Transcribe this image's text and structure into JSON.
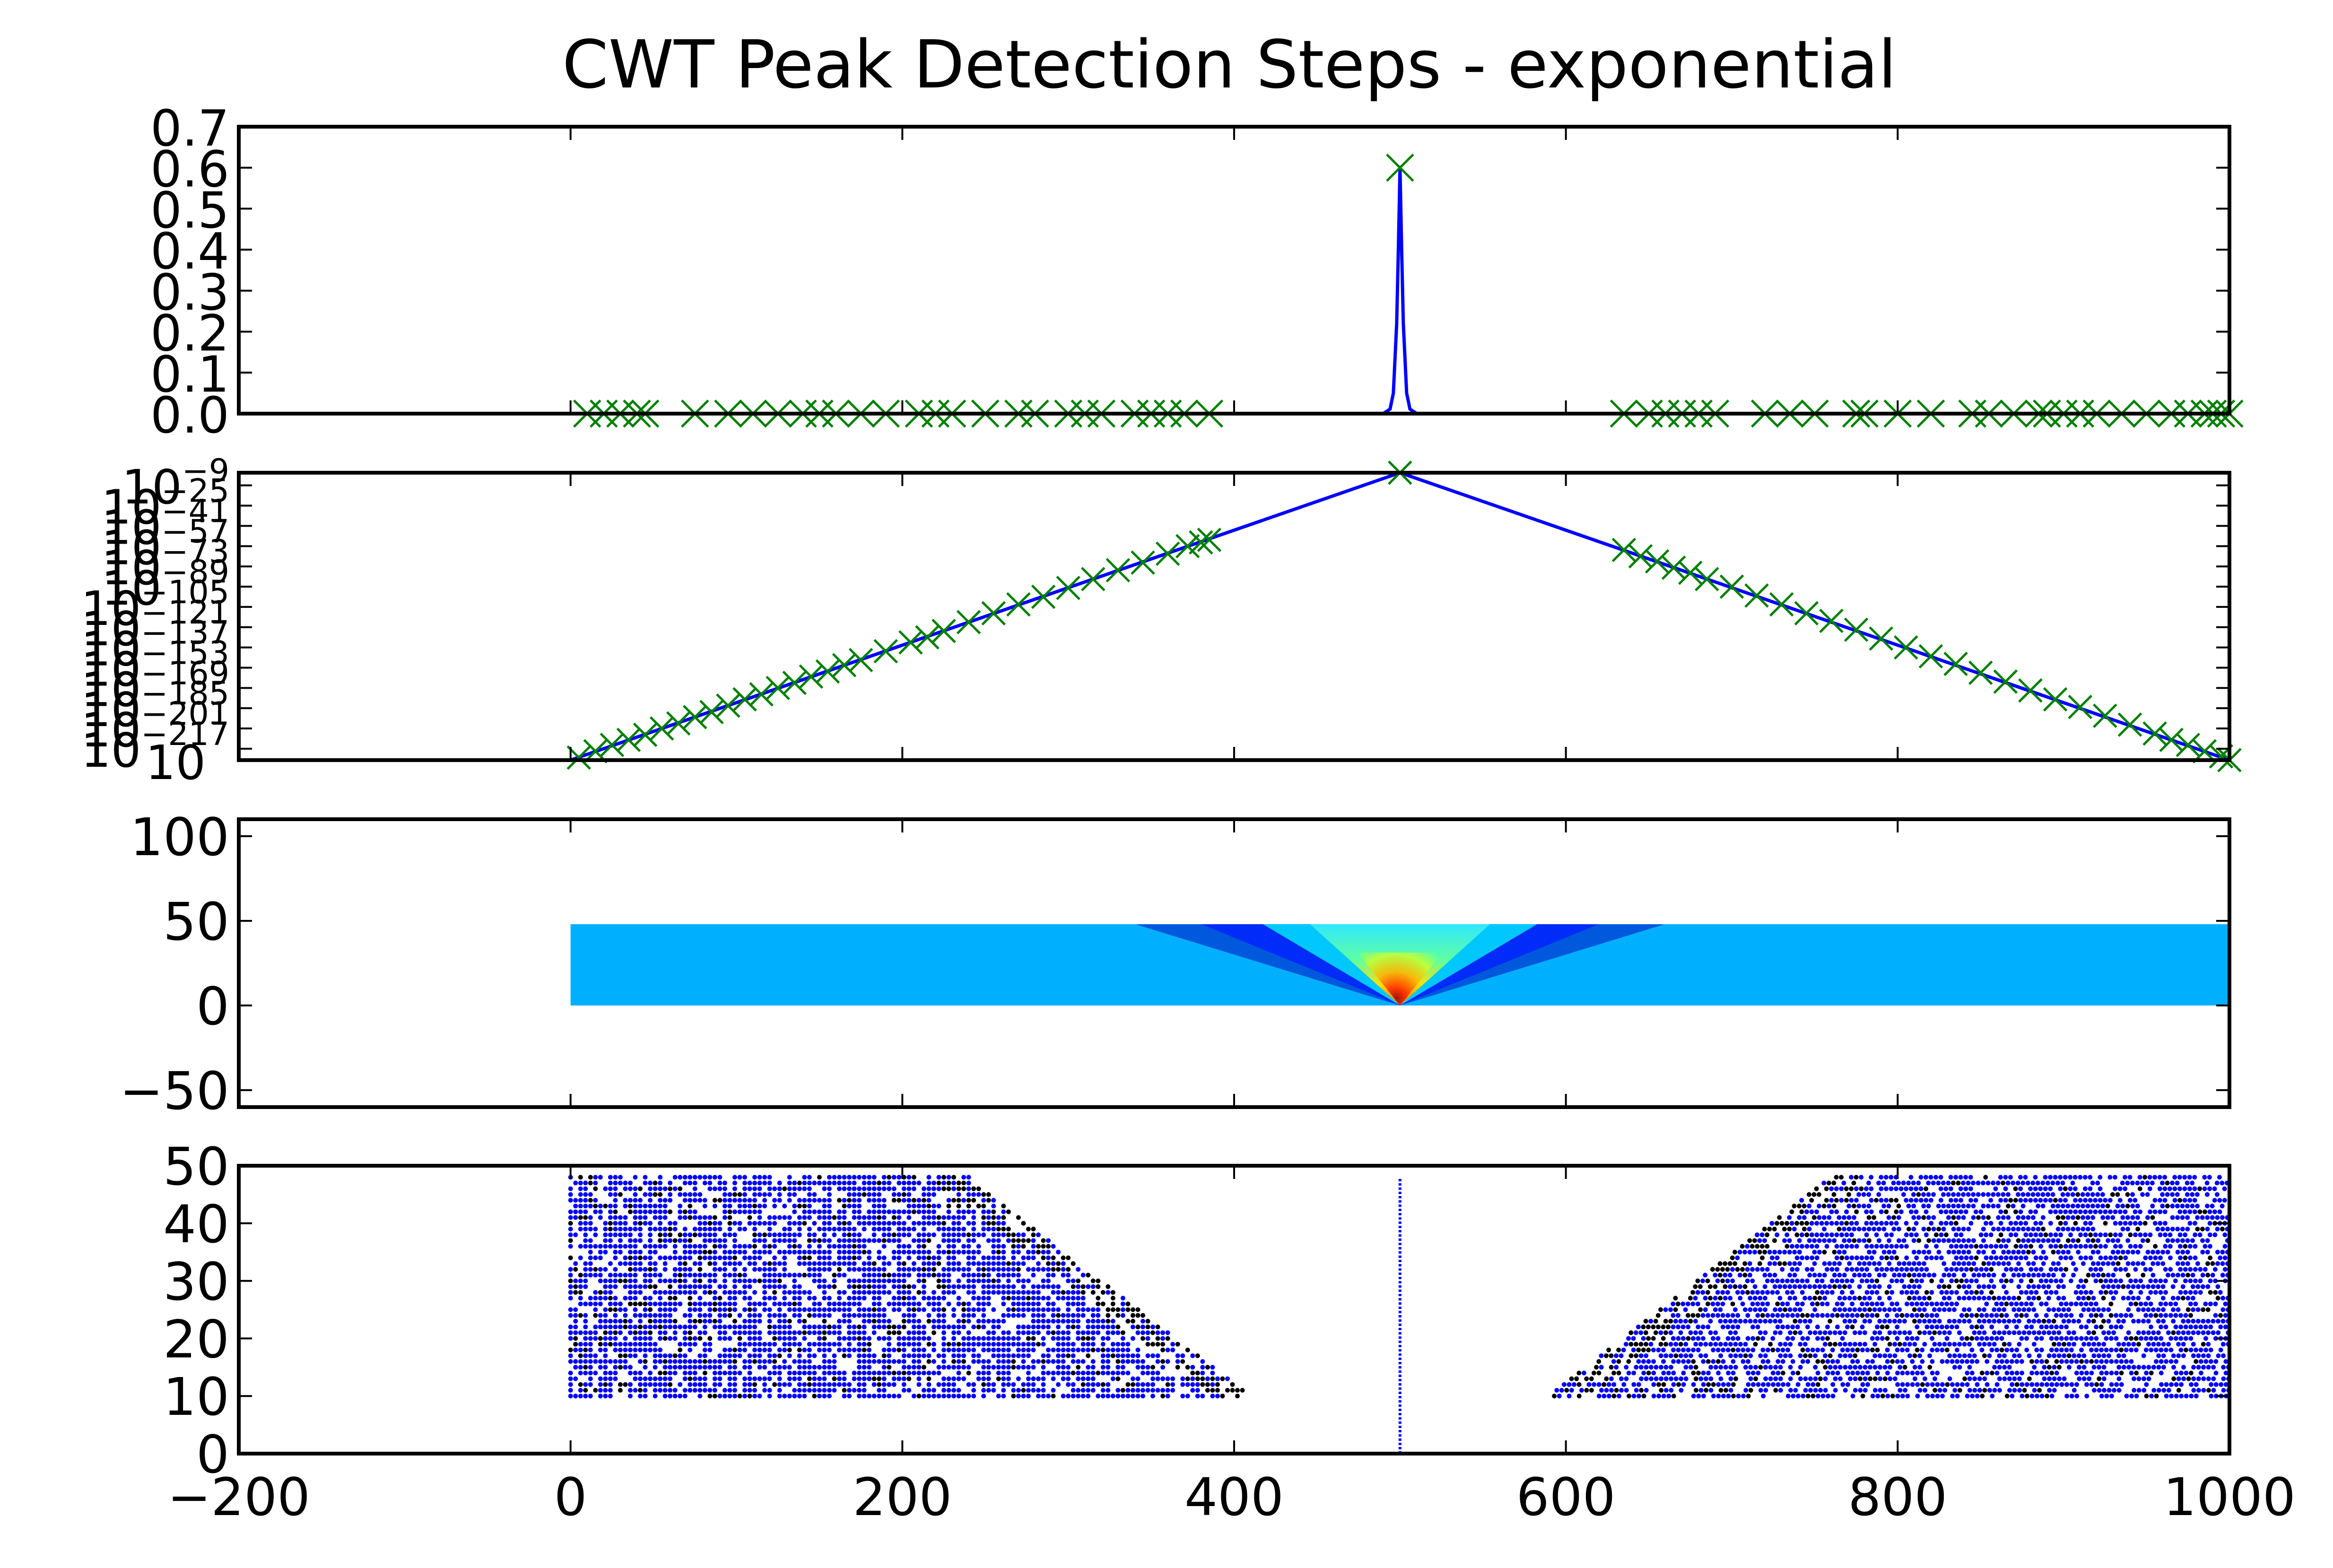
{
  "figure": {
    "title": "CWT Peak Detection Steps - exponential"
  },
  "colors": {
    "line": "#0000ff",
    "peak_marker": "#008000",
    "ridge_main": "#0000ff",
    "ridge_other": "#000000",
    "heat_background": "#00b0ff"
  },
  "chart_data": [
    {
      "id": "signal",
      "type": "line",
      "xlim": [
        -200,
        1000
      ],
      "ylim": [
        0,
        0.7
      ],
      "xticks": [
        -200,
        0,
        200,
        400,
        600,
        800,
        1000
      ],
      "yticks": [
        0.0,
        0.1,
        0.2,
        0.3,
        0.4,
        0.5,
        0.6,
        0.7
      ],
      "ytick_labels": [
        "0.0",
        "0.1",
        "0.2",
        "0.3",
        "0.4",
        "0.5",
        "0.6",
        "0.7"
      ],
      "series": [
        {
          "type": "line",
          "x": [
            0,
            480,
            490,
            494,
            496,
            498,
            499,
            500,
            501,
            502,
            504,
            506,
            510,
            520,
            1000
          ],
          "y": [
            0,
            0,
            0.0004,
            0.011,
            0.05,
            0.22,
            0.4,
            0.6,
            0.4,
            0.22,
            0.05,
            0.011,
            0.0004,
            0,
            0
          ]
        },
        {
          "type": "scatter",
          "marker": "x",
          "x": [
            500,
            10,
            20,
            30,
            40,
            45,
            75,
            95,
            110,
            125,
            140,
            150,
            160,
            175,
            190,
            210,
            220,
            230,
            250,
            270,
            280,
            300,
            310,
            320,
            340,
            350,
            360,
            370,
            385,
            635,
            650,
            660,
            670,
            680,
            690,
            720,
            735,
            750,
            775,
            780,
            800,
            820,
            845,
            855,
            870,
            885,
            890,
            900,
            910,
            920,
            935,
            950,
            965,
            975,
            985,
            990,
            995,
            1000
          ],
          "y": [
            0.6,
            0,
            0,
            0,
            0,
            0,
            0,
            0,
            0,
            0,
            0,
            0,
            0,
            0,
            0,
            0,
            0,
            0,
            0,
            0,
            0,
            0,
            0,
            0,
            0,
            0,
            0,
            0,
            0,
            0,
            0,
            0,
            0,
            0,
            0,
            0,
            0,
            0,
            0,
            0,
            0,
            0,
            0,
            0,
            0,
            0,
            0,
            0,
            0,
            0,
            0,
            0,
            0,
            0,
            0,
            0,
            0,
            0
          ]
        }
      ]
    },
    {
      "id": "log-signal",
      "type": "line",
      "yscale": "log",
      "xlim": [
        -200,
        1000
      ],
      "ylim_exponent": [
        -226,
        1
      ],
      "ytick_exponents": [
        -9,
        -25,
        -41,
        -57,
        -73,
        -89,
        -105,
        -121,
        -137,
        -153,
        -169,
        -185,
        -201,
        -217
      ],
      "ytick_labels": [
        "10^-9",
        "10^-25",
        "10^-41",
        "10^-57",
        "10^-73",
        "10^-89",
        "10^-105",
        "10^-121",
        "10^-137",
        "10^-153",
        "10^-169",
        "10^-185",
        "10^-201",
        "10^-217"
      ],
      "axis_bottom_label": "10",
      "series": [
        {
          "type": "line",
          "x": [
            0,
            500,
            1000
          ],
          "log10_y": [
            -226,
            1,
            -226
          ]
        },
        {
          "type": "scatter",
          "marker": "x",
          "x": [
            500,
            5,
            15,
            25,
            35,
            45,
            55,
            65,
            75,
            85,
            95,
            105,
            115,
            125,
            135,
            145,
            155,
            165,
            175,
            190,
            205,
            215,
            225,
            240,
            255,
            270,
            285,
            300,
            315,
            330,
            345,
            360,
            372,
            380,
            385,
            635,
            645,
            655,
            665,
            675,
            685,
            700,
            715,
            730,
            745,
            760,
            775,
            790,
            805,
            820,
            835,
            850,
            865,
            880,
            895,
            910,
            925,
            940,
            955,
            965,
            975,
            985,
            995,
            1000
          ],
          "log10_y": [
            1,
            -224,
            -219,
            -214,
            -210,
            -206,
            -201,
            -197,
            -192,
            -188,
            -183,
            -178,
            -174,
            -169,
            -165,
            -160,
            -156,
            -151,
            -147,
            -140,
            -133,
            -129,
            -124,
            -117,
            -110,
            -103,
            -97,
            -90,
            -83,
            -76,
            -70,
            -63,
            -57,
            -54,
            -52,
            -60,
            -65,
            -69,
            -74,
            -78,
            -83,
            -89,
            -96,
            -103,
            -110,
            -116,
            -123,
            -130,
            -137,
            -144,
            -150,
            -157,
            -164,
            -171,
            -178,
            -184,
            -191,
            -198,
            -205,
            -210,
            -214,
            -219,
            -223,
            -226
          ]
        }
      ]
    },
    {
      "id": "cwt-heatmap",
      "type": "heatmap",
      "xlim": [
        -200,
        1000
      ],
      "ylim": [
        -60,
        110
      ],
      "yticks": [
        -50,
        0,
        50,
        100
      ],
      "ytick_labels": [
        "−50",
        "0",
        "50",
        "100"
      ],
      "extent": {
        "x": [
          0,
          1000
        ],
        "y": [
          0,
          48
        ]
      },
      "peak": {
        "x": 500,
        "y": 0
      }
    },
    {
      "id": "ridge-lines",
      "type": "scatter",
      "xlim": [
        -200,
        1000
      ],
      "ylim": [
        0,
        50
      ],
      "xticks": [
        -200,
        0,
        200,
        400,
        600,
        800,
        1000
      ],
      "xtick_labels": [
        "−200",
        "0",
        "200",
        "400",
        "600",
        "800",
        "1000"
      ],
      "yticks": [
        0,
        10,
        20,
        30,
        40,
        50
      ],
      "ytick_labels": [
        "0",
        "10",
        "20",
        "30",
        "40",
        "50"
      ],
      "region": {
        "y_min": 10,
        "y_max": 48,
        "left_x0": 0,
        "left_x_at_top": 240,
        "left_x_at_bottom": 410,
        "right_x0": 1000,
        "right_x_at_top": 760,
        "right_x_at_bottom": 590
      },
      "main_ridge": {
        "x": 500,
        "y": [
          0,
          48
        ]
      }
    }
  ]
}
